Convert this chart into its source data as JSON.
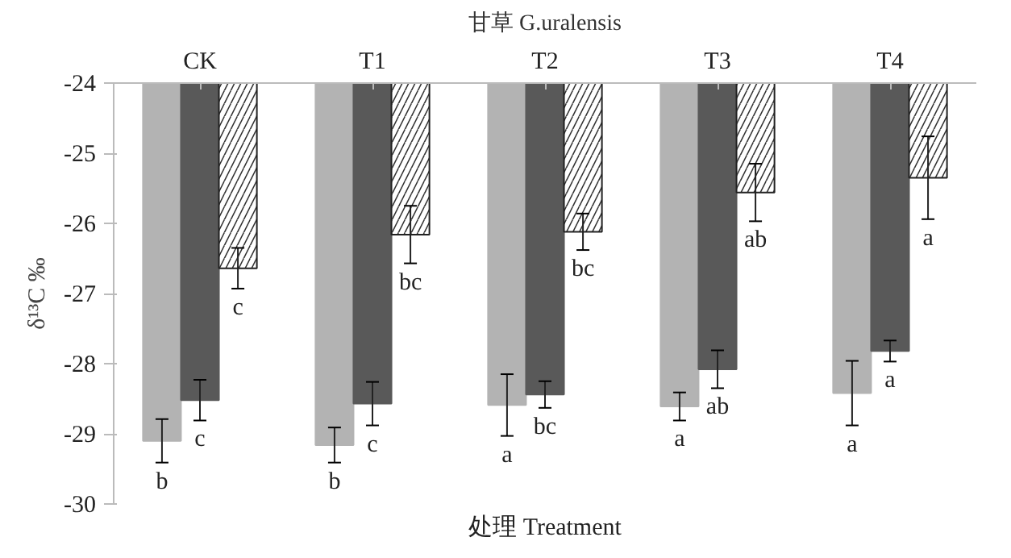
{
  "chart_data": {
    "type": "bar",
    "title": "甘草 G.uralensis",
    "xlabel": "处理 Treatment",
    "ylabel": "δ¹³C ‰",
    "categories": [
      "CK",
      "T1",
      "T2",
      "T3",
      "T4"
    ],
    "ylim": [
      -30,
      -24
    ],
    "yticks": [
      -24,
      -25,
      -26,
      -27,
      -28,
      -29,
      -30
    ],
    "grid": false,
    "series": [
      {
        "color": "#b3b3b3",
        "values": [
          -29.1,
          -29.16,
          -28.59,
          -28.61,
          -28.42
        ],
        "errors": [
          0.31,
          0.25,
          0.44,
          0.2,
          0.46
        ],
        "value_labels": [
          "b",
          "b",
          "a",
          "a",
          "a"
        ]
      },
      {
        "color": "#595959",
        "values": [
          -28.52,
          -28.57,
          -28.44,
          -28.08,
          -27.82
        ],
        "errors": [
          0.29,
          0.31,
          0.19,
          0.27,
          0.15
        ],
        "value_labels": [
          "c",
          "c",
          "bc",
          "ab",
          "a"
        ]
      },
      {
        "color": "#ffffff",
        "values": [
          -26.64,
          -26.16,
          -26.12,
          -25.56,
          -25.35
        ],
        "errors": [
          0.29,
          0.41,
          0.26,
          0.41,
          0.59
        ],
        "value_labels": [
          "c",
          "bc",
          "bc",
          "ab",
          "a"
        ]
      }
    ]
  }
}
